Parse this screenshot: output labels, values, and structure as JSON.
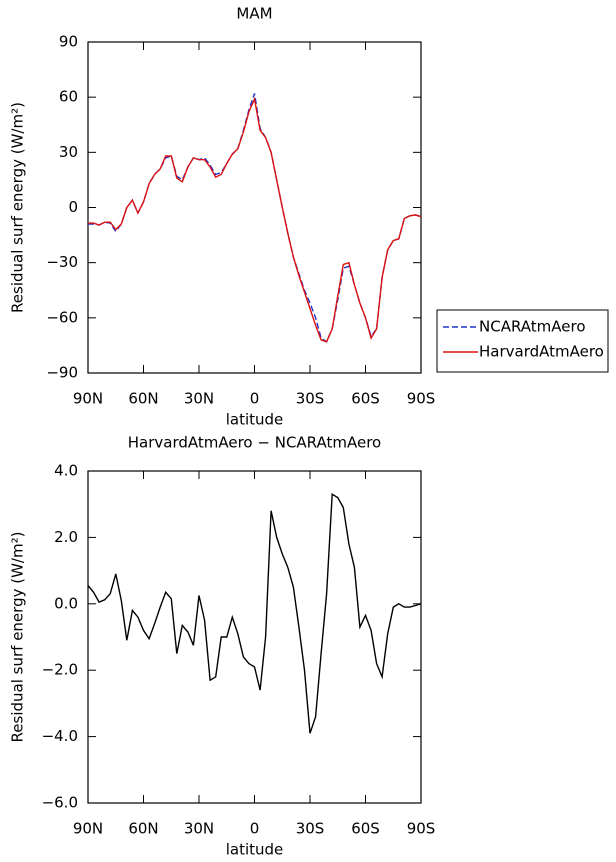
{
  "chart_data": [
    {
      "type": "line",
      "title": "MAM",
      "xlabel": "latitude",
      "ylabel": "Residual surf energy (W/m²)",
      "x": [
        90,
        87,
        84,
        81,
        78,
        75,
        72,
        69,
        66,
        63,
        60,
        57,
        54,
        51,
        48,
        45,
        42,
        39,
        36,
        33,
        30,
        27,
        24,
        21,
        18,
        15,
        12,
        9,
        6,
        3,
        0,
        -3,
        -6,
        -9,
        -12,
        -15,
        -18,
        -21,
        -24,
        -27,
        -30,
        -33,
        -36,
        -39,
        -42,
        -45,
        -48,
        -51,
        -54,
        -57,
        -60,
        -63,
        -66,
        -69,
        -72,
        -75,
        -78,
        -81,
        -84,
        -87,
        -90
      ],
      "xlim": [
        90,
        -90
      ],
      "xticks": [
        {
          "value": 90,
          "label": "90N"
        },
        {
          "value": 60,
          "label": "60N"
        },
        {
          "value": 30,
          "label": "30N"
        },
        0,
        {
          "value": -30,
          "label": "30S"
        },
        {
          "value": -60,
          "label": "60S"
        },
        {
          "value": -90,
          "label": "90S"
        }
      ],
      "ylim": [
        -90,
        90
      ],
      "yticks": [
        {
          "value": -90,
          "label": "−90"
        },
        {
          "value": -60,
          "label": "−60"
        },
        {
          "value": -30,
          "label": "−30"
        },
        0,
        30,
        60,
        90
      ],
      "series": [
        {
          "name": "NCARAtmAero",
          "color": "#2233cc",
          "dashed": true,
          "values": [
            -9,
            -9,
            -9.5,
            -8,
            -8.5,
            -13,
            -9,
            0,
            4,
            -3,
            3,
            13,
            18,
            21,
            27,
            28,
            17,
            15,
            22,
            27,
            26,
            27,
            23,
            18,
            19,
            24,
            29,
            32,
            42,
            53,
            62,
            43,
            38,
            30,
            15,
            0,
            -14,
            -27,
            -36,
            -45,
            -52,
            -60,
            -71,
            -73,
            -66,
            -50,
            -33,
            -32,
            -42,
            -52,
            -60,
            -70,
            -66,
            -38,
            -23,
            -18,
            -17,
            -6,
            -4.5,
            -4,
            -5
          ]
        },
        {
          "name": "HarvardAtmAero",
          "color": "#dd1111",
          "dashed": false,
          "values": [
            -8.5,
            -8.5,
            -9.5,
            -8,
            -8,
            -12,
            -9,
            0,
            4,
            -3,
            3,
            13,
            18,
            21,
            28,
            28,
            16,
            14,
            22,
            27,
            26,
            26,
            22,
            16.5,
            18,
            24,
            29,
            32,
            41,
            52,
            59,
            42,
            38,
            30,
            15,
            0,
            -14,
            -27,
            -37,
            -46,
            -55,
            -64,
            -72,
            -73,
            -66,
            -48,
            -31,
            -30,
            -42,
            -52,
            -60,
            -71,
            -66,
            -38,
            -23,
            -18,
            -17,
            -6,
            -4.5,
            -4,
            -5
          ]
        }
      ],
      "legend": "right"
    },
    {
      "type": "line",
      "title": "HarvardAtmAero − NCARAtmAero",
      "xlabel": "latitude",
      "ylabel": "Residual surf energy (W/m²)",
      "x": [
        90,
        87,
        84,
        81,
        78,
        75,
        72,
        69,
        66,
        63,
        60,
        57,
        54,
        51,
        48,
        45,
        42,
        39,
        36,
        33,
        30,
        27,
        24,
        21,
        18,
        15,
        12,
        9,
        6,
        3,
        0,
        -3,
        -6,
        -9,
        -12,
        -15,
        -18,
        -21,
        -24,
        -27,
        -30,
        -33,
        -36,
        -39,
        -42,
        -45,
        -48,
        -51,
        -54,
        -57,
        -60,
        -63,
        -66,
        -69,
        -72,
        -75,
        -78,
        -81,
        -84,
        -87,
        -90
      ],
      "xlim": [
        90,
        -90
      ],
      "xticks": [
        {
          "value": 90,
          "label": "90N"
        },
        {
          "value": 60,
          "label": "60N"
        },
        {
          "value": 30,
          "label": "30N"
        },
        0,
        {
          "value": -30,
          "label": "30S"
        },
        {
          "value": -60,
          "label": "60S"
        },
        {
          "value": -90,
          "label": "90S"
        }
      ],
      "ylim": [
        -6,
        4
      ],
      "yticks": [
        {
          "value": -6,
          "label": "−6.0"
        },
        {
          "value": -4,
          "label": "−4.0"
        },
        {
          "value": -2,
          "label": "−2.0"
        },
        {
          "value": 0,
          "label": "0.0"
        },
        {
          "value": 2,
          "label": "2.0"
        },
        {
          "value": 4,
          "label": "4.0"
        }
      ],
      "series": [
        {
          "color": "#000000",
          "values": [
            0.55,
            0.35,
            0.05,
            0.12,
            0.3,
            0.9,
            0.1,
            -1.1,
            -0.2,
            -0.4,
            -0.8,
            -1.05,
            -0.6,
            -0.1,
            0.35,
            0.15,
            -1.5,
            -0.65,
            -0.85,
            -1.25,
            0.25,
            -0.5,
            -2.3,
            -2.2,
            -1.0,
            -1.0,
            -0.4,
            -0.9,
            -1.6,
            -1.8,
            -1.9,
            -2.6,
            -1.0,
            2.8,
            2.0,
            1.5,
            1.1,
            0.5,
            -0.7,
            -2.0,
            -3.9,
            -3.4,
            -1.5,
            0.3,
            3.3,
            3.2,
            2.9,
            1.8,
            1.1,
            -0.7,
            -0.35,
            -0.8,
            -1.8,
            -2.2,
            -0.9,
            -0.1,
            0.0,
            -0.1,
            -0.1,
            -0.05,
            0.0
          ]
        }
      ]
    }
  ]
}
